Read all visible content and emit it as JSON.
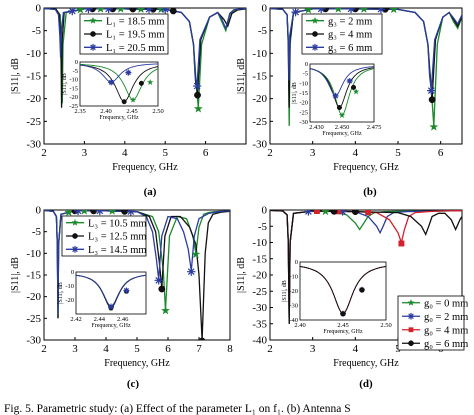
{
  "caption": "Fig. 5.   Parametric study: (a) Effect of the parameter L₁ on f₁. (b) Antenna S",
  "chart_data": [
    {
      "type": "line",
      "panel_label": "(a)",
      "xlabel": "Frequency, GHz",
      "ylabel": "|S11|, dB",
      "xlim": [
        2,
        7
      ],
      "ylim": [
        -30,
        0
      ],
      "xticks": [
        "2",
        "3",
        "4",
        "5",
        "6"
      ],
      "yticks": [
        "0",
        "-5",
        "-10",
        "-15",
        "-20",
        "-25",
        "-30"
      ],
      "legend": [
        "L₁ = 18.5 mm",
        "L₁ = 19.5 mm",
        "L₁ = 20.5 mm"
      ],
      "series": [
        {
          "name": "L₁ = 18.5 mm",
          "color": "#1a8a2a",
          "marker": "star",
          "x": [
            2,
            2.3,
            2.4,
            2.43,
            2.452,
            2.47,
            2.55,
            3,
            4,
            5,
            5.4,
            5.6,
            5.7,
            5.78,
            5.82,
            5.9,
            6.1,
            6.3,
            6.4,
            6.5,
            6.6,
            6.7,
            6.9,
            7
          ],
          "y": [
            -0.1,
            -0.3,
            -1.5,
            -8,
            -21,
            -8,
            -1,
            -0.2,
            -0.2,
            -0.3,
            -1,
            -3,
            -8,
            -18,
            -22,
            -8,
            -2,
            -1,
            -3,
            -5,
            -1.5,
            -0.5,
            -0.3,
            -0.2
          ]
        },
        {
          "name": "L₁ = 19.5 mm",
          "color": "#111111",
          "marker": "circle",
          "x": [
            2,
            2.3,
            2.38,
            2.42,
            2.435,
            2.45,
            2.5,
            3,
            4,
            5,
            5.4,
            5.6,
            5.7,
            5.75,
            5.8,
            5.88,
            6.1,
            6.3,
            6.45,
            6.55,
            6.65,
            6.8,
            7
          ],
          "y": [
            -0.1,
            -0.3,
            -1.5,
            -10,
            -22,
            -7,
            -1,
            -0.2,
            -0.2,
            -0.3,
            -1,
            -3,
            -8,
            -16,
            -19,
            -7,
            -2,
            -1,
            -2.5,
            -4,
            -1.2,
            -0.4,
            -0.2
          ]
        },
        {
          "name": "L₁ = 20.5 mm",
          "color": "#2b3c9e",
          "marker": "asterisk",
          "x": [
            2,
            2.28,
            2.36,
            2.39,
            2.41,
            2.43,
            2.48,
            3,
            4,
            5,
            5.4,
            5.6,
            5.7,
            5.74,
            5.79,
            5.86,
            6.1,
            6.3,
            6.4,
            6.5,
            6.6,
            6.7,
            6.9,
            7
          ],
          "y": [
            -0.1,
            -0.3,
            -1.5,
            -6,
            -11,
            -5,
            -1,
            -0.2,
            -0.2,
            -0.3,
            -1,
            -3,
            -8,
            -15,
            -17,
            -7,
            -2,
            -1,
            -2.5,
            -4.5,
            -1.2,
            -0.4,
            -0.2,
            -0.1
          ]
        }
      ],
      "inset": {
        "xlim": [
          2.35,
          2.5
        ],
        "ylim": [
          -25,
          0
        ],
        "xticks": [
          "2.35",
          "2.40",
          "2.45",
          "2.50"
        ],
        "yticks": [
          "0",
          "-5",
          "-10",
          "-15",
          "-20",
          "-25"
        ],
        "xlabel": "Frequency, GHz",
        "ylabel": "|S11|, dB"
      }
    },
    {
      "type": "line",
      "panel_label": "(b)",
      "xlabel": "Frequency, GHz",
      "ylabel": "|S11|, dB",
      "xlim": [
        2,
        6.5
      ],
      "ylim": [
        -30,
        0
      ],
      "xticks": [
        "2",
        "3",
        "4",
        "5",
        "6"
      ],
      "yticks": [
        "0",
        "-5",
        "-10",
        "-15",
        "-20",
        "-25",
        "-30"
      ],
      "legend": [
        "g₃ = 2 mm",
        "g₃ = 4 mm",
        "g₃ = 6 mm"
      ],
      "series": [
        {
          "name": "g₃ = 2 mm",
          "color": "#1a8a2a",
          "marker": "star",
          "x": [
            2,
            2.3,
            2.4,
            2.43,
            2.45,
            2.47,
            2.55,
            3,
            4,
            5,
            5.4,
            5.6,
            5.7,
            5.78,
            5.84,
            5.92,
            6.05,
            6.2,
            6.3,
            6.4,
            6.5
          ],
          "y": [
            -0.1,
            -0.3,
            -1.5,
            -8,
            -26,
            -8,
            -1,
            -0.2,
            -0.2,
            -0.3,
            -1,
            -3,
            -8,
            -18,
            -26,
            -8,
            -2,
            -1,
            -3,
            -4.5,
            -2
          ]
        },
        {
          "name": "g₃ = 4 mm",
          "color": "#111111",
          "marker": "circle",
          "x": [
            2,
            2.3,
            2.4,
            2.43,
            2.448,
            2.47,
            2.55,
            3,
            4,
            5,
            5.4,
            5.6,
            5.7,
            5.76,
            5.8,
            5.88,
            6.05,
            6.2,
            6.3,
            6.4,
            6.5
          ],
          "y": [
            -0.1,
            -0.3,
            -1.5,
            -8,
            -22,
            -7,
            -1,
            -0.2,
            -0.2,
            -0.3,
            -1,
            -3,
            -8,
            -16,
            -20,
            -7,
            -2,
            -1,
            -2.5,
            -4,
            -1.8
          ]
        },
        {
          "name": "g₃ = 6 mm",
          "color": "#2b3c9e",
          "marker": "asterisk",
          "x": [
            2,
            2.3,
            2.4,
            2.43,
            2.445,
            2.465,
            2.55,
            3,
            4,
            5,
            5.4,
            5.6,
            5.7,
            5.74,
            5.78,
            5.86,
            6.05,
            6.2,
            6.3,
            6.4,
            6.5
          ],
          "y": [
            -0.1,
            -0.3,
            -1.5,
            -7,
            -16,
            -6,
            -1,
            -0.2,
            -0.2,
            -0.3,
            -1,
            -3,
            -8,
            -15,
            -18,
            -7,
            -2,
            -1,
            -2.2,
            -3.5,
            -1.5
          ]
        }
      ],
      "inset": {
        "xlim": [
          2.425,
          2.475
        ],
        "ylim": [
          -30,
          0
        ],
        "xticks": [
          "2.430",
          "2.450",
          "2.475"
        ],
        "yticks": [
          "0",
          "-5",
          "-10",
          "-15",
          "-20",
          "-25",
          "-30"
        ],
        "xlabel": "Frequency, GHz",
        "ylabel": "|S11|, dB"
      }
    },
    {
      "type": "line",
      "panel_label": "(c)",
      "xlabel": "Frequency, GHz",
      "ylabel": "|S11|, dB",
      "xlim": [
        2,
        8
      ],
      "ylim": [
        -30,
        0
      ],
      "xticks": [
        "2",
        "3",
        "4",
        "5",
        "6",
        "7",
        "8"
      ],
      "yticks": [
        "0",
        "-5",
        "-10",
        "-15",
        "-20",
        "-25",
        "-30"
      ],
      "legend": [
        "L₃ = 10.5 mm",
        "L₃ = 12.5 mm",
        "L₃ = 14.5 mm"
      ],
      "series": [
        {
          "name": "L₃ = 10.5 mm",
          "color": "#1a8a2a",
          "marker": "star",
          "x": [
            2,
            2.3,
            2.4,
            2.43,
            2.45,
            2.47,
            2.55,
            3,
            4,
            5,
            5.5,
            5.7,
            5.85,
            5.92,
            6.05,
            6.3,
            6.6,
            6.8,
            6.9,
            7,
            7.15,
            7.3,
            7.5,
            7.8,
            8
          ],
          "y": [
            -0.1,
            -0.3,
            -1.5,
            -8,
            -25,
            -8,
            -1,
            -0.2,
            -0.2,
            -0.4,
            -1.5,
            -5,
            -14,
            -23,
            -6,
            -1.5,
            -2,
            -6,
            -10,
            -4,
            -1,
            -0.6,
            -0.4,
            -0.3,
            -0.2
          ]
        },
        {
          "name": "L₃ = 12.5 mm",
          "color": "#111111",
          "marker": "circle",
          "x": [
            2,
            2.3,
            2.4,
            2.43,
            2.45,
            2.47,
            2.55,
            3,
            4,
            5,
            5.4,
            5.6,
            5.72,
            5.8,
            5.9,
            6.1,
            6.4,
            6.7,
            6.9,
            7,
            7.1,
            7.2,
            7.3,
            7.45,
            7.7,
            8
          ],
          "y": [
            -0.1,
            -0.3,
            -1.5,
            -8,
            -25,
            -8,
            -1,
            -0.2,
            -0.2,
            -0.4,
            -1.5,
            -5,
            -12,
            -18,
            -6,
            -1.5,
            -1.5,
            -4,
            -8,
            -15,
            -30,
            -10,
            -3,
            -1,
            -0.5,
            -0.3
          ]
        },
        {
          "name": "L₃ = 14.5 mm",
          "color": "#2b3c9e",
          "marker": "asterisk",
          "x": [
            2,
            2.3,
            2.4,
            2.43,
            2.45,
            2.47,
            2.55,
            3,
            4,
            5,
            5.3,
            5.5,
            5.62,
            5.7,
            5.8,
            6,
            6.3,
            6.5,
            6.65,
            6.75,
            6.85,
            7,
            7.3,
            7.6,
            8
          ],
          "y": [
            -0.1,
            -0.3,
            -1.5,
            -8,
            -24,
            -8,
            -1,
            -0.2,
            -0.2,
            -0.4,
            -1.5,
            -5,
            -11,
            -16,
            -6,
            -1.5,
            -2,
            -5,
            -9,
            -14,
            -6,
            -2,
            -0.8,
            -0.4,
            -0.2
          ]
        }
      ],
      "inset": {
        "xlim": [
          2.42,
          2.48
        ],
        "ylim": [
          -30,
          0
        ],
        "xticks": [
          "2.42",
          "2.44",
          "2.46"
        ],
        "yticks": [
          "0",
          "-10",
          "-20"
        ],
        "xlabel": "Frequency, GHz",
        "ylabel": "|S11|, dB"
      }
    },
    {
      "type": "line",
      "panel_label": "(d)",
      "xlabel": "Frequency, GHz",
      "ylabel": "|S11|, dB",
      "xlim": [
        2,
        6.5
      ],
      "ylim": [
        -40,
        0
      ],
      "xticks": [
        "2",
        "3",
        "4",
        "5",
        "6"
      ],
      "yticks": [
        "0",
        "-5",
        "-10",
        "-15",
        "-20",
        "-25",
        "-30",
        "-35",
        "-40"
      ],
      "legend": [
        "g₀ = 0 mm",
        "g₀ = 2 mm",
        "g₀ = 4 mm",
        "g₀ = 6 mm"
      ],
      "series": [
        {
          "name": "g₀ = 0 mm",
          "color": "#1a8a2a",
          "marker": "star",
          "x": [
            2,
            2.3,
            2.4,
            2.43,
            2.45,
            2.47,
            2.55,
            3,
            3.5,
            3.8,
            4,
            4.1,
            4.2,
            4.3,
            4.45,
            4.7,
            5,
            5.5,
            6,
            6.5
          ],
          "y": [
            -0.1,
            -0.3,
            -1.5,
            -10,
            -35,
            -10,
            -1,
            -0.3,
            -0.5,
            -1.5,
            -4,
            -6,
            -4,
            -2,
            -0.8,
            -0.5,
            -0.4,
            -0.4,
            -0.3,
            -0.2
          ]
        },
        {
          "name": "g₀ = 2 mm",
          "color": "#2b3c9e",
          "marker": "asterisk",
          "x": [
            2,
            2.3,
            2.4,
            2.43,
            2.45,
            2.47,
            2.55,
            3,
            4,
            4.3,
            4.5,
            4.58,
            4.65,
            4.75,
            4.9,
            5.2,
            5.6,
            6,
            6.5
          ],
          "y": [
            -0.1,
            -0.3,
            -1.5,
            -10,
            -35,
            -10,
            -1,
            -0.3,
            -0.5,
            -2,
            -5,
            -7,
            -5,
            -2,
            -0.8,
            -0.5,
            -0.4,
            -0.3,
            -0.2
          ]
        },
        {
          "name": "g₀ = 4 mm",
          "color": "#d4202a",
          "marker": "square",
          "x": [
            2,
            2.3,
            2.4,
            2.43,
            2.45,
            2.47,
            2.55,
            3,
            4,
            4.5,
            4.8,
            5,
            5.08,
            5.15,
            5.25,
            5.4,
            5.7,
            6,
            6.5
          ],
          "y": [
            -0.1,
            -0.3,
            -1.5,
            -10,
            -35,
            -10,
            -1,
            -0.3,
            -0.5,
            -0.8,
            -3,
            -7,
            -10,
            -6,
            -2,
            -0.8,
            -0.5,
            -0.3,
            -0.2
          ]
        },
        {
          "name": "g₀ = 6 mm",
          "color": "#111111",
          "marker": "circle",
          "x": [
            2,
            2.3,
            2.4,
            2.43,
            2.45,
            2.47,
            2.55,
            3,
            4,
            5,
            5.3,
            5.55,
            5.65,
            5.72,
            5.8,
            5.95,
            6.1,
            6.25,
            6.35,
            6.45,
            6.5
          ],
          "y": [
            -0.1,
            -0.3,
            -1.5,
            -10,
            -35,
            -10,
            -1,
            -0.3,
            -0.5,
            -0.8,
            -2,
            -5,
            -7.5,
            -5,
            -2,
            -1,
            -1,
            -3,
            -6,
            -3,
            -2
          ]
        }
      ],
      "inset": {
        "xlim": [
          2.4,
          2.5
        ],
        "ylim": [
          -40,
          0
        ],
        "xticks": [
          "2.40",
          "2.45",
          "2.50"
        ],
        "yticks": [
          "0",
          "-10",
          "-20",
          "-30",
          "-40"
        ],
        "xlabel": "Frequency, GHz",
        "ylabel": "|S11|, dB"
      }
    }
  ]
}
